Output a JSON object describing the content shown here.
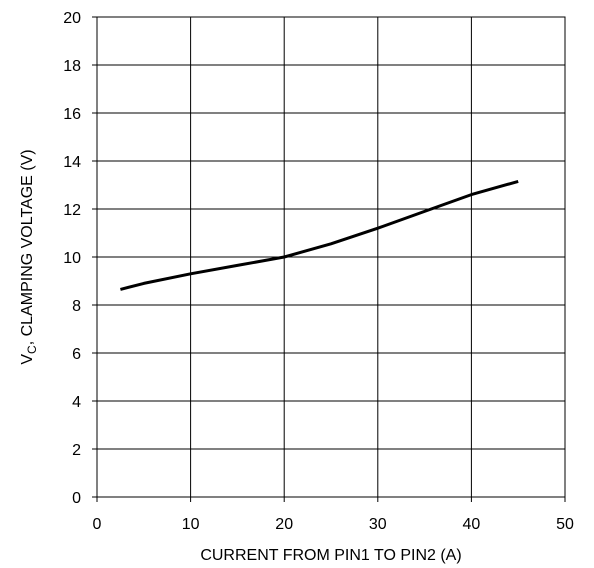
{
  "chart_data": {
    "type": "line",
    "title": "",
    "xlabel": "CURRENT FROM PIN1 TO PIN2 (A)",
    "ylabel": {
      "prefix": "V",
      "subscript": "C",
      "suffix": ", CLAMPING VOLTAGE (V)"
    },
    "xlim": [
      0,
      50
    ],
    "ylim": [
      0,
      20
    ],
    "x_ticks": [
      0,
      10,
      20,
      30,
      40,
      50
    ],
    "y_ticks": [
      0,
      2,
      4,
      6,
      8,
      10,
      12,
      14,
      16,
      18,
      20
    ],
    "grid": true,
    "line_color": "#000000",
    "series": [
      {
        "x": [
          2.5,
          5,
          10,
          15,
          20,
          25,
          30,
          35,
          40,
          45
        ],
        "y": [
          8.65,
          8.9,
          9.3,
          9.65,
          10.0,
          10.55,
          11.2,
          11.9,
          12.6,
          13.15
        ]
      }
    ]
  }
}
